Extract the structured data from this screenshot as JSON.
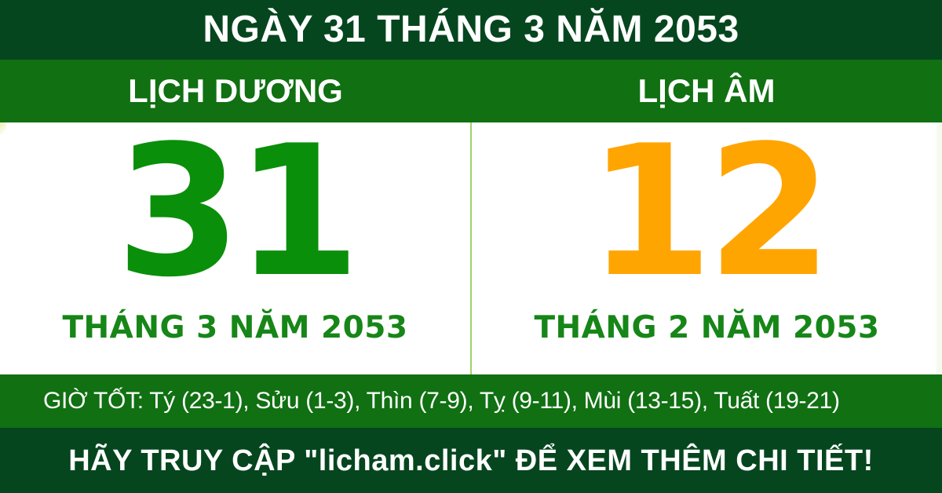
{
  "colors": {
    "dark_green": "#05461e",
    "band_green": "#107012",
    "number_green": "#0a8f0a",
    "month_green": "#178618",
    "lunar_orange": "#ffa502",
    "divider_green": "#9ed16b",
    "edge_tint": "#f5faef",
    "text_white": "#ffffff"
  },
  "header": {
    "title": "NGÀY 31 THÁNG 3 NĂM 2053"
  },
  "tabs": {
    "solar_label": "LỊCH DƯƠNG",
    "lunar_label": "LỊCH ÂM"
  },
  "solar": {
    "day": "31",
    "month_year": "THÁNG 3 NĂM 2053"
  },
  "lunar": {
    "day": "12",
    "month_year": "THÁNG 2 NĂM 2053"
  },
  "good_hours": {
    "text": "GIỜ TỐT: Tý (23-1), Sửu (1-3), Thìn (7-9), Tỵ (9-11), Mùi (13-15), Tuất (19-21)"
  },
  "footer": {
    "cta": "HÃY TRUY CẬP \"licham.click\" ĐỂ XEM THÊM CHI TIẾT!"
  }
}
